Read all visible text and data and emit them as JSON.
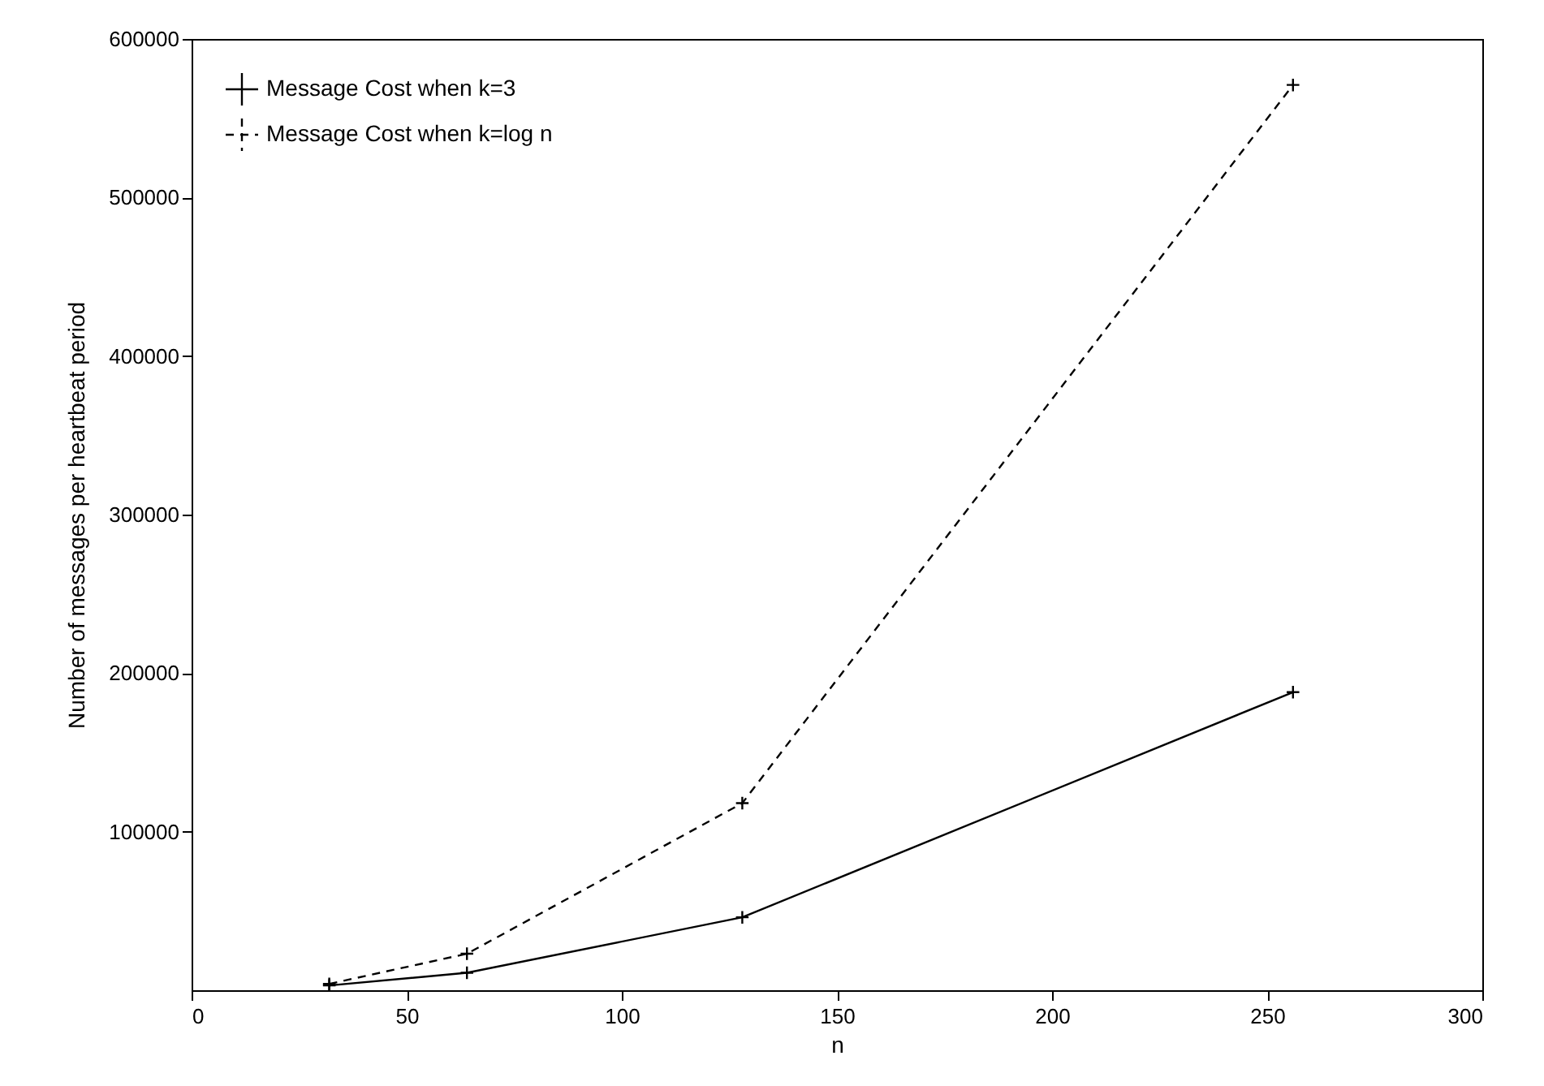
{
  "chart_data": {
    "type": "line",
    "xlabel": "n",
    "ylabel": "Number of messages per heartbeat period",
    "x": [
      32,
      64,
      128,
      256
    ],
    "series": [
      {
        "name": "Message Cost when k=3",
        "color": "#000000",
        "line_style": "solid",
        "values": [
          3000,
          11000,
          46000,
          188000
        ]
      },
      {
        "name": "Message Cost when k=log n",
        "color": "#000000",
        "line_style": "dashed",
        "values": [
          4000,
          23000,
          118000,
          571000
        ]
      }
    ],
    "xlim": [
      0,
      300
    ],
    "xticks": [
      0,
      50,
      100,
      150,
      200,
      250,
      300
    ],
    "ylim": [
      0,
      600000
    ],
    "yticks": [
      100000,
      200000,
      300000,
      400000,
      500000,
      600000
    ],
    "grid": false,
    "legend": "top left",
    "marker": "cross"
  }
}
